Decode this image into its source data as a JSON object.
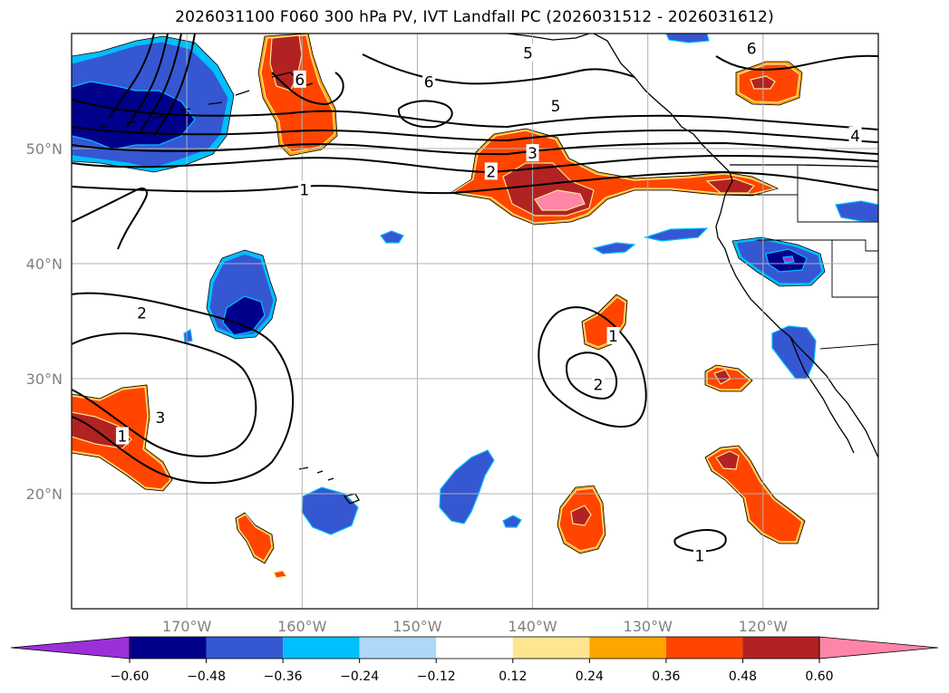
{
  "title": "2026031100 F060 300 hPa PV, IVT Landfall PC (2026031512 - 2026031612)",
  "colors": {
    "neg_extend": "#9b30d9",
    "neg_060": "#00008b",
    "neg_048": "#3557d2",
    "neg_036": "#00bfff",
    "neg_024": "#add8f7",
    "neutral": "#ffffff",
    "pos_012": "#ffe58f",
    "pos_024": "#ffa500",
    "pos_036": "#ff4500",
    "pos_048": "#b22222",
    "pos_extend": "#ff85a8",
    "grid": "#b0b0b0",
    "contour": "#000000",
    "coast": "#000000"
  },
  "chart_data": {
    "type": "map",
    "projection": "equirectangular",
    "lon_range": [
      -180,
      -110
    ],
    "lat_range": [
      10,
      60
    ],
    "longitude_ticks": [
      {
        "lon": -170,
        "label": "170°W"
      },
      {
        "lon": -160,
        "label": "160°W"
      },
      {
        "lon": -150,
        "label": "150°W"
      },
      {
        "lon": -140,
        "label": "140°W"
      },
      {
        "lon": -130,
        "label": "130°W"
      },
      {
        "lon": -120,
        "label": "120°W"
      }
    ],
    "latitude_ticks": [
      {
        "lat": 50,
        "label": "50°N"
      },
      {
        "lat": 40,
        "label": "40°N"
      },
      {
        "lat": 30,
        "label": "30°N"
      },
      {
        "lat": 20,
        "label": "20°N"
      }
    ],
    "colorbar": {
      "levels": [
        -0.6,
        -0.48,
        -0.36,
        -0.24,
        -0.12,
        0.12,
        0.24,
        0.36,
        0.48,
        0.6
      ],
      "tick_labels": [
        "−0.60",
        "−0.48",
        "−0.36",
        "−0.24",
        "−0.12",
        "0.12",
        "0.24",
        "0.36",
        "0.48",
        "0.60"
      ],
      "extend": "both"
    },
    "contour_labels": [
      {
        "text": "6",
        "lon": -160.2,
        "lat": 56.0
      },
      {
        "text": "6",
        "lon": -149.0,
        "lat": 55.8
      },
      {
        "text": "6",
        "lon": -121.0,
        "lat": 58.7
      },
      {
        "text": "5",
        "lon": -140.4,
        "lat": 58.3
      },
      {
        "text": "5",
        "lon": -138.0,
        "lat": 53.7
      },
      {
        "text": "4",
        "lon": -112.0,
        "lat": 51.1
      },
      {
        "text": "3",
        "lon": -140.0,
        "lat": 49.6
      },
      {
        "text": "2",
        "lon": -143.6,
        "lat": 48.0
      },
      {
        "text": "1",
        "lon": -159.8,
        "lat": 46.4
      },
      {
        "text": "2",
        "lon": -173.9,
        "lat": 35.7
      },
      {
        "text": "3",
        "lon": -172.3,
        "lat": 26.6
      },
      {
        "text": "1",
        "lon": -175.6,
        "lat": 25.0
      },
      {
        "text": "1",
        "lon": -133.0,
        "lat": 33.7
      },
      {
        "text": "2",
        "lon": -134.3,
        "lat": 29.5
      },
      {
        "text": "1",
        "lon": -125.5,
        "lat": 14.6
      }
    ]
  }
}
